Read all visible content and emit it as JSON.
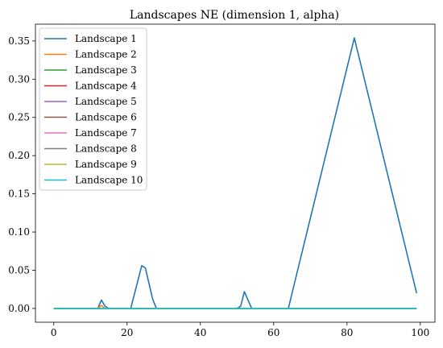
{
  "chart_data": {
    "type": "line",
    "title": "Landscapes NE (dimension 1, alpha)",
    "xlabel": "",
    "ylabel": "",
    "xlim": [
      -5,
      104
    ],
    "ylim": [
      -0.018,
      0.372
    ],
    "xticks": [
      0,
      20,
      40,
      60,
      80,
      100
    ],
    "xtick_labels": [
      "0",
      "20",
      "40",
      "60",
      "80",
      "100"
    ],
    "yticks": [
      0.0,
      0.05,
      0.1,
      0.15,
      0.2,
      0.25,
      0.3,
      0.35
    ],
    "ytick_labels": [
      "0.00",
      "0.05",
      "0.10",
      "0.15",
      "0.20",
      "0.25",
      "0.30",
      "0.35"
    ],
    "grid": false,
    "legend_position": "top-left",
    "series": [
      {
        "name": "Landscape 1",
        "color": "#1f77b4",
        "x": [
          0,
          12,
          13,
          14,
          15,
          21,
          24,
          25,
          27,
          28,
          50,
          51,
          52,
          54,
          64,
          82,
          99
        ],
        "y": [
          0,
          0,
          0.011,
          0.003,
          0,
          0,
          0.056,
          0.053,
          0.012,
          0,
          0,
          0.003,
          0.022,
          0,
          0,
          0.354,
          0.02
        ]
      },
      {
        "name": "Landscape 2",
        "color": "#ff7f0e",
        "x": [
          0,
          12,
          13,
          14,
          99
        ],
        "y": [
          0,
          0,
          0.004,
          0,
          0
        ]
      },
      {
        "name": "Landscape 3",
        "color": "#2ca02c",
        "x": [
          0,
          99
        ],
        "y": [
          0,
          0
        ]
      },
      {
        "name": "Landscape 4",
        "color": "#d62728",
        "x": [
          0,
          99
        ],
        "y": [
          0,
          0
        ]
      },
      {
        "name": "Landscape 5",
        "color": "#9467bd",
        "x": [
          0,
          99
        ],
        "y": [
          0,
          0
        ]
      },
      {
        "name": "Landscape 6",
        "color": "#8c564b",
        "x": [
          0,
          99
        ],
        "y": [
          0,
          0
        ]
      },
      {
        "name": "Landscape 7",
        "color": "#e377c2",
        "x": [
          0,
          99
        ],
        "y": [
          0,
          0
        ]
      },
      {
        "name": "Landscape 8",
        "color": "#7f7f7f",
        "x": [
          0,
          99
        ],
        "y": [
          0,
          0
        ]
      },
      {
        "name": "Landscape 9",
        "color": "#bcbd22",
        "x": [
          0,
          99
        ],
        "y": [
          0,
          0
        ]
      },
      {
        "name": "Landscape 10",
        "color": "#17becf",
        "x": [
          0,
          99
        ],
        "y": [
          0,
          0
        ]
      }
    ]
  }
}
